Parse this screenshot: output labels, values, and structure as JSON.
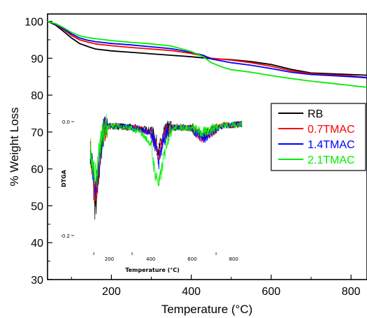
{
  "chart_data": [
    {
      "id": "main",
      "type": "line",
      "title": "",
      "xlabel": "Temperature (°C)",
      "ylabel": "% Weight Loss",
      "xlim": [
        40,
        840
      ],
      "ylim": [
        30,
        102
      ],
      "xticks": [
        200,
        400,
        600,
        800
      ],
      "yticks": [
        30,
        40,
        50,
        60,
        70,
        80,
        90,
        100
      ],
      "legend_position": "right",
      "grid": false,
      "series": [
        {
          "name": "RB",
          "color": "#000000",
          "x": [
            40,
            60,
            80,
            100,
            120,
            140,
            160,
            200,
            250,
            300,
            350,
            400,
            430,
            450,
            500,
            550,
            600,
            650,
            700,
            750,
            800,
            840
          ],
          "y": [
            100,
            99,
            97.3,
            95.5,
            94.0,
            93.2,
            92.5,
            92.0,
            91.6,
            91.2,
            90.8,
            90.4,
            90.1,
            89.9,
            89.6,
            89.1,
            88.3,
            87.0,
            86.0,
            85.8,
            85.6,
            85.4
          ]
        },
        {
          "name": "0.7TMAC",
          "color": "#ff0000",
          "x": [
            40,
            60,
            80,
            100,
            120,
            140,
            160,
            200,
            250,
            300,
            350,
            400,
            430,
            450,
            500,
            550,
            600,
            650,
            700,
            750,
            800,
            840
          ],
          "y": [
            100,
            99.2,
            97.8,
            96.2,
            95.0,
            94.4,
            93.9,
            93.4,
            92.9,
            92.5,
            92.1,
            91.3,
            90.6,
            90.0,
            89.5,
            88.8,
            87.8,
            86.6,
            85.8,
            85.5,
            85.2,
            84.8
          ]
        },
        {
          "name": "1.4TMAC",
          "color": "#0000ff",
          "x": [
            40,
            60,
            80,
            100,
            120,
            140,
            160,
            200,
            250,
            300,
            350,
            400,
            430,
            450,
            500,
            550,
            600,
            650,
            700,
            750,
            800,
            840
          ],
          "y": [
            100,
            99.3,
            98.0,
            96.6,
            95.5,
            94.9,
            94.5,
            94.0,
            93.6,
            93.1,
            92.6,
            91.6,
            90.8,
            89.8,
            88.8,
            88.1,
            87.2,
            86.2,
            85.6,
            85.3,
            85.0,
            84.7
          ]
        },
        {
          "name": "2.1TMAC",
          "color": "#00ee00",
          "x": [
            40,
            60,
            80,
            100,
            120,
            140,
            160,
            200,
            250,
            300,
            350,
            400,
            430,
            450,
            480,
            500,
            550,
            600,
            650,
            700,
            750,
            800,
            840
          ],
          "y": [
            100,
            99.4,
            98.3,
            97.0,
            96.1,
            95.6,
            95.3,
            94.8,
            94.3,
            93.9,
            93.3,
            91.8,
            90.4,
            88.8,
            87.5,
            86.9,
            86.2,
            85.3,
            84.5,
            83.8,
            83.2,
            82.6,
            82.1
          ]
        }
      ]
    },
    {
      "id": "inset",
      "type": "line",
      "title": "",
      "xlabel": "Temperature (°C)",
      "ylabel": "DTGA",
      "xlim": [
        30,
        880
      ],
      "ylim": [
        -0.2,
        0.0
      ],
      "xticks": [
        200,
        400,
        600,
        800
      ],
      "yticks": [
        -0.2,
        0.0
      ],
      "ytick_labels": [
        "-0.2",
        "0.0"
      ],
      "noisy": true,
      "grid": false,
      "series": [
        {
          "name": "RB",
          "color": "#000000",
          "x": [
            30,
            100,
            110,
            120,
            130,
            140,
            150,
            160,
            170,
            180,
            200,
            250,
            300,
            350,
            400,
            420,
            440,
            460,
            480,
            500,
            550,
            600,
            650,
            700,
            750,
            800,
            840
          ],
          "y": [
            -0.002,
            -0.01,
            -0.06,
            -0.1,
            -0.15,
            -0.14,
            -0.09,
            -0.05,
            -0.025,
            -0.01,
            -0.008,
            -0.008,
            -0.01,
            -0.012,
            -0.015,
            -0.03,
            -0.05,
            -0.025,
            -0.012,
            -0.01,
            -0.01,
            -0.012,
            -0.025,
            -0.015,
            -0.006,
            -0.006,
            -0.004
          ]
        },
        {
          "name": "0.7TMAC",
          "color": "#ff0000",
          "x": [
            30,
            100,
            110,
            120,
            130,
            140,
            150,
            160,
            170,
            180,
            200,
            250,
            300,
            350,
            400,
            420,
            440,
            460,
            480,
            500,
            550,
            600,
            650,
            700,
            750,
            800,
            840
          ],
          "y": [
            -0.002,
            -0.012,
            -0.055,
            -0.09,
            -0.13,
            -0.12,
            -0.08,
            -0.045,
            -0.022,
            -0.01,
            -0.008,
            -0.008,
            -0.01,
            -0.013,
            -0.018,
            -0.035,
            -0.06,
            -0.03,
            -0.014,
            -0.01,
            -0.01,
            -0.012,
            -0.03,
            -0.016,
            -0.006,
            -0.006,
            -0.004
          ]
        },
        {
          "name": "1.4TMAC",
          "color": "#0000ff",
          "x": [
            30,
            100,
            110,
            120,
            130,
            140,
            150,
            160,
            170,
            180,
            200,
            250,
            300,
            350,
            400,
            420,
            440,
            460,
            480,
            500,
            550,
            600,
            650,
            700,
            750,
            800,
            840
          ],
          "y": [
            -0.002,
            -0.012,
            -0.05,
            -0.085,
            -0.115,
            -0.105,
            -0.07,
            -0.04,
            -0.02,
            -0.01,
            -0.008,
            -0.008,
            -0.01,
            -0.014,
            -0.02,
            -0.04,
            -0.07,
            -0.035,
            -0.015,
            -0.01,
            -0.01,
            -0.012,
            -0.03,
            -0.018,
            -0.008,
            -0.006,
            -0.004
          ]
        },
        {
          "name": "2.1TMAC",
          "color": "#00ee00",
          "x": [
            30,
            100,
            110,
            120,
            130,
            140,
            150,
            160,
            170,
            180,
            200,
            250,
            300,
            350,
            400,
            420,
            440,
            460,
            480,
            500,
            550,
            600,
            650,
            700,
            750,
            800,
            840
          ],
          "y": [
            -0.002,
            -0.012,
            -0.045,
            -0.08,
            -0.1,
            -0.09,
            -0.06,
            -0.035,
            -0.018,
            -0.01,
            -0.008,
            -0.008,
            -0.012,
            -0.018,
            -0.04,
            -0.09,
            -0.11,
            -0.07,
            -0.03,
            -0.012,
            -0.01,
            -0.012,
            -0.02,
            -0.012,
            -0.006,
            -0.006,
            -0.004
          ]
        }
      ]
    }
  ]
}
